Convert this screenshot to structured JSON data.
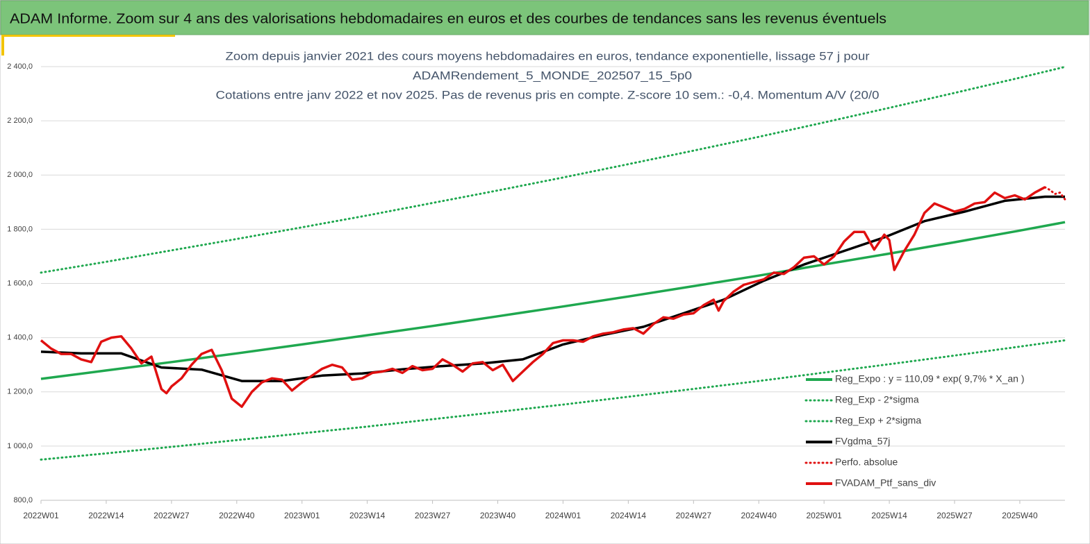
{
  "header": {
    "title": "ADAM Informe. Zoom sur 4 ans des valorisations hebdomadaires en euros et des courbes de tendances sans les revenus éventuels"
  },
  "chart_data": {
    "type": "line",
    "title_lines": [
      "Zoom depuis janvier 2021 des cours moyens hebdomadaires  en euros, tendance exponentielle, lissage 57 j pour",
      "ADAMRendement_5_MONDE_202507_15_5p0",
      "Cotations  entre janv 2022 et nov 2025. Pas de revenus pris en compte. Z-score 10 sem.: -0,4. Momentum A/V (20/0"
    ],
    "xlim": [
      0,
      204
    ],
    "xticks": [
      {
        "value": 0,
        "label": "2022W01"
      },
      {
        "value": 13,
        "label": "2022W14"
      },
      {
        "value": 26,
        "label": "2022W27"
      },
      {
        "value": 39,
        "label": "2022W40"
      },
      {
        "value": 52,
        "label": "2023W01"
      },
      {
        "value": 65,
        "label": "2023W14"
      },
      {
        "value": 78,
        "label": "2023W27"
      },
      {
        "value": 91,
        "label": "2023W40"
      },
      {
        "value": 104,
        "label": "2024W01"
      },
      {
        "value": 117,
        "label": "2024W14"
      },
      {
        "value": 130,
        "label": "2024W27"
      },
      {
        "value": 143,
        "label": "2024W40"
      },
      {
        "value": 156,
        "label": "2025W01"
      },
      {
        "value": 169,
        "label": "2025W14"
      },
      {
        "value": 182,
        "label": "2025W27"
      },
      {
        "value": 195,
        "label": "2025W40"
      }
    ],
    "ylim": [
      800,
      2400
    ],
    "yticks": [
      {
        "value": 800,
        "label": "800,0"
      },
      {
        "value": 1000,
        "label": "1 000,0"
      },
      {
        "value": 1200,
        "label": "1 200,0"
      },
      {
        "value": 1400,
        "label": "1 400,0"
      },
      {
        "value": 1600,
        "label": "1 600,0"
      },
      {
        "value": 1800,
        "label": "1 800,0"
      },
      {
        "value": 2000,
        "label": "2 000,0"
      },
      {
        "value": 2200,
        "label": "2 200,0"
      },
      {
        "value": 2400,
        "label": "2 400,0"
      }
    ],
    "grid": true,
    "legend": "lower right",
    "series": [
      {
        "name": "Reg_Expo : y = 110,09 * exp( 9,7% *  X_an )",
        "color": "#1fa84f",
        "style": "solid",
        "x": [
          0,
          13,
          26,
          39,
          52,
          65,
          78,
          91,
          104,
          117,
          130,
          143,
          156,
          169,
          182,
          195,
          204
        ],
        "values": [
          1248,
          1279,
          1310,
          1342,
          1375,
          1409,
          1443,
          1479,
          1515,
          1552,
          1590,
          1629,
          1670,
          1710,
          1752,
          1795,
          1826
        ]
      },
      {
        "name": "Reg_Exp - 2*sigma",
        "color": "#1fa84f",
        "style": "dotted",
        "x": [
          0,
          13,
          26,
          39,
          52,
          65,
          78,
          91,
          104,
          117,
          130,
          143,
          156,
          169,
          182,
          195,
          204
        ],
        "values": [
          950,
          973,
          997,
          1022,
          1047,
          1072,
          1099,
          1126,
          1153,
          1182,
          1211,
          1240,
          1271,
          1302,
          1334,
          1367,
          1390
        ]
      },
      {
        "name": "Reg_Exp + 2*sigma",
        "color": "#1fa84f",
        "style": "dotted",
        "x": [
          0,
          13,
          26,
          39,
          52,
          65,
          78,
          91,
          104,
          117,
          130,
          143,
          156,
          169,
          182,
          195,
          204
        ],
        "values": [
          1640,
          1680,
          1722,
          1764,
          1807,
          1851,
          1897,
          1943,
          1991,
          2040,
          2090,
          2141,
          2194,
          2248,
          2303,
          2359,
          2399
        ]
      },
      {
        "name": "FVgdma_57j",
        "color": "#000000",
        "style": "solid",
        "x": [
          0,
          8,
          16,
          24,
          32,
          40,
          48,
          56,
          64,
          72,
          80,
          88,
          96,
          104,
          112,
          120,
          128,
          136,
          144,
          152,
          160,
          168,
          176,
          184,
          192,
          200,
          204
        ],
        "values": [
          1348,
          1342,
          1342,
          1290,
          1282,
          1240,
          1240,
          1260,
          1268,
          1283,
          1295,
          1305,
          1320,
          1375,
          1410,
          1440,
          1490,
          1540,
          1610,
          1670,
          1720,
          1770,
          1830,
          1865,
          1905,
          1920,
          1920
        ]
      },
      {
        "name": "Perfo. absolue",
        "color": "#e01010",
        "style": "dotted",
        "x": [
          200,
          201,
          202,
          203,
          204
        ],
        "values": [
          1955,
          1945,
          1930,
          1935,
          1910
        ]
      },
      {
        "name": "FVADAM_Ptf_sans_div",
        "color": "#e01010",
        "style": "solid",
        "x": [
          0,
          2,
          4,
          6,
          8,
          10,
          12,
          14,
          16,
          18,
          20,
          22,
          24,
          25,
          26,
          28,
          30,
          32,
          34,
          36,
          38,
          40,
          42,
          44,
          46,
          48,
          50,
          52,
          54,
          56,
          58,
          60,
          62,
          64,
          66,
          68,
          70,
          72,
          74,
          76,
          78,
          80,
          82,
          84,
          86,
          88,
          90,
          92,
          94,
          96,
          98,
          100,
          102,
          104,
          106,
          108,
          110,
          112,
          114,
          116,
          118,
          120,
          122,
          124,
          126,
          128,
          130,
          132,
          134,
          135,
          136,
          138,
          140,
          142,
          144,
          146,
          148,
          150,
          152,
          154,
          156,
          158,
          160,
          162,
          164,
          166,
          168,
          169,
          170,
          172,
          174,
          176,
          178,
          180,
          182,
          184,
          186,
          188,
          190,
          192,
          194,
          196,
          198,
          200
        ],
        "values": [
          1390,
          1360,
          1340,
          1340,
          1320,
          1310,
          1385,
          1400,
          1405,
          1360,
          1305,
          1330,
          1210,
          1195,
          1220,
          1250,
          1300,
          1340,
          1355,
          1280,
          1175,
          1145,
          1200,
          1235,
          1250,
          1245,
          1205,
          1235,
          1260,
          1285,
          1300,
          1290,
          1245,
          1250,
          1270,
          1275,
          1285,
          1270,
          1295,
          1280,
          1285,
          1320,
          1300,
          1275,
          1305,
          1310,
          1280,
          1300,
          1240,
          1275,
          1310,
          1340,
          1380,
          1390,
          1390,
          1385,
          1405,
          1415,
          1420,
          1430,
          1435,
          1415,
          1450,
          1475,
          1470,
          1485,
          1490,
          1520,
          1540,
          1500,
          1535,
          1570,
          1595,
          1605,
          1615,
          1640,
          1635,
          1660,
          1695,
          1700,
          1670,
          1700,
          1755,
          1790,
          1790,
          1725,
          1780,
          1760,
          1650,
          1720,
          1780,
          1860,
          1895,
          1880,
          1865,
          1875,
          1895,
          1900,
          1935,
          1915,
          1925,
          1910,
          1935,
          1955
        ]
      }
    ]
  }
}
